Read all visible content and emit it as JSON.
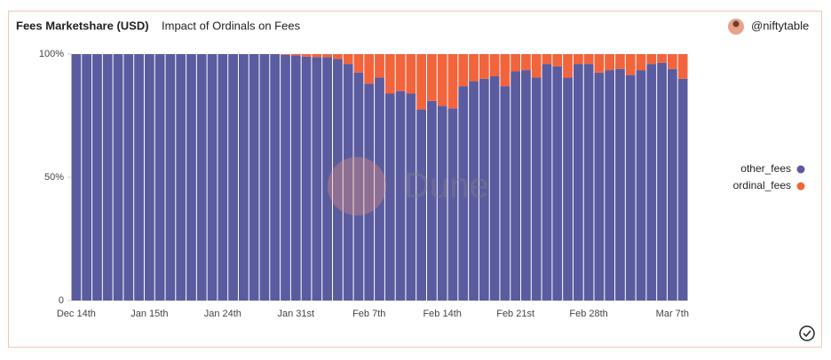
{
  "chart_data": {
    "type": "stacked-bar",
    "title": "Fees Marketshare (USD)",
    "subtitle": "Impact of Ordinals on Fees",
    "author": "@niftytable",
    "watermark": "Dune",
    "categories": [
      "Dec 14th",
      null,
      null,
      null,
      null,
      null,
      null,
      "Jan 15th",
      null,
      null,
      null,
      null,
      null,
      null,
      "Jan 24th",
      null,
      null,
      null,
      null,
      null,
      null,
      "Jan 31st",
      null,
      null,
      null,
      null,
      null,
      null,
      "Feb 7th",
      null,
      null,
      null,
      null,
      null,
      null,
      "Feb 14th",
      null,
      null,
      null,
      null,
      null,
      null,
      "Feb 21st",
      null,
      null,
      null,
      null,
      null,
      null,
      "Feb 28th",
      null,
      null,
      null,
      null,
      null,
      null,
      null,
      "Mar 7th",
      null
    ],
    "series": [
      {
        "name": "other_fees",
        "color": "#5b5ba0",
        "values": [
          100,
          100,
          100,
          100,
          100,
          100,
          100,
          100,
          100,
          100,
          100,
          100,
          100,
          100,
          100,
          100,
          100,
          100,
          100,
          100,
          99.7,
          99.5,
          99,
          98.8,
          98.8,
          98,
          96,
          92.5,
          88,
          90.5,
          84,
          85,
          84,
          77.5,
          81,
          79,
          78,
          87,
          89,
          90,
          91,
          87,
          93,
          93.5,
          90.5,
          96,
          95,
          90.5,
          96,
          96,
          92.5,
          93.5,
          94,
          91.5,
          93.5,
          96,
          96.5,
          94,
          90
        ]
      },
      {
        "name": "ordinal_fees",
        "color": "#f2643c",
        "values": [
          0,
          0,
          0,
          0,
          0,
          0,
          0,
          0,
          0,
          0,
          0,
          0,
          0,
          0,
          0,
          0,
          0,
          0,
          0,
          0,
          0.3,
          0.5,
          1,
          1.2,
          1.2,
          2,
          4,
          7.5,
          12,
          9.5,
          16,
          15,
          16,
          22.5,
          19,
          21,
          22,
          13,
          11,
          10,
          9,
          13,
          7,
          6.5,
          9.5,
          4,
          5,
          9.5,
          4,
          4,
          7.5,
          6.5,
          6,
          8.5,
          6.5,
          4,
          3.5,
          6,
          10
        ]
      }
    ],
    "ylim": [
      0,
      100
    ],
    "yticks": [
      0,
      {
        "value": 50,
        "label": "50%"
      },
      {
        "value": 100,
        "label": "100%"
      }
    ]
  }
}
